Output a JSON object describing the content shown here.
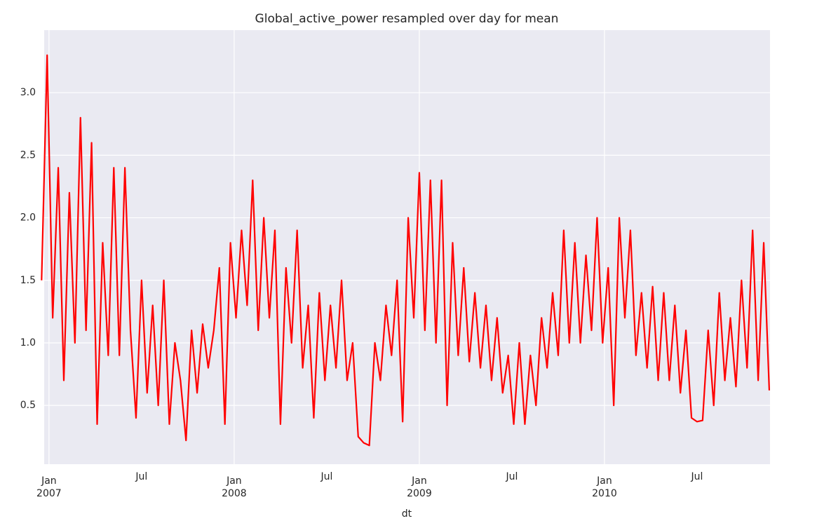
{
  "chart_data": {
    "type": "line",
    "title": "Global_active_power resampled over day for mean",
    "x_label": "dt",
    "x": [
      2006.96,
      2006.99,
      2007.02,
      2007.05,
      2007.08,
      2007.11,
      2007.14,
      2007.17,
      2007.2,
      2007.23,
      2007.26,
      2007.29,
      2007.32,
      2007.35,
      2007.38,
      2007.41,
      2007.44,
      2007.47,
      2007.5,
      2007.53,
      2007.56,
      2007.59,
      2007.62,
      2007.65,
      2007.68,
      2007.71,
      2007.74,
      2007.77,
      2007.8,
      2007.83,
      2007.86,
      2007.89,
      2007.92,
      2007.95,
      2007.98,
      2008.01,
      2008.04,
      2008.07,
      2008.1,
      2008.13,
      2008.16,
      2008.19,
      2008.22,
      2008.25,
      2008.28,
      2008.31,
      2008.34,
      2008.37,
      2008.4,
      2008.43,
      2008.46,
      2008.49,
      2008.52,
      2008.55,
      2008.58,
      2008.61,
      2008.64,
      2008.67,
      2008.7,
      2008.73,
      2008.76,
      2008.79,
      2008.82,
      2008.85,
      2008.88,
      2008.91,
      2008.94,
      2008.97,
      2009.0,
      2009.03,
      2009.06,
      2009.09,
      2009.12,
      2009.15,
      2009.18,
      2009.21,
      2009.24,
      2009.27,
      2009.3,
      2009.33,
      2009.36,
      2009.39,
      2009.42,
      2009.45,
      2009.48,
      2009.51,
      2009.54,
      2009.57,
      2009.6,
      2009.63,
      2009.66,
      2009.69,
      2009.72,
      2009.75,
      2009.78,
      2009.81,
      2009.84,
      2009.87,
      2009.9,
      2009.93,
      2009.96,
      2009.99,
      2010.02,
      2010.05,
      2010.08,
      2010.11,
      2010.14,
      2010.17,
      2010.2,
      2010.23,
      2010.26,
      2010.29,
      2010.32,
      2010.35,
      2010.38,
      2010.41,
      2010.44,
      2010.47,
      2010.5,
      2010.53,
      2010.56,
      2010.59,
      2010.62,
      2010.65,
      2010.68,
      2010.71,
      2010.74,
      2010.77,
      2010.8,
      2010.83,
      2010.86,
      2010.89
    ],
    "series": [
      {
        "color": "#ff0000",
        "values": [
          1.5,
          3.3,
          1.2,
          2.4,
          0.7,
          2.2,
          1.0,
          2.8,
          1.1,
          2.6,
          0.35,
          1.8,
          0.9,
          2.4,
          0.9,
          2.4,
          1.1,
          0.4,
          1.5,
          0.6,
          1.3,
          0.5,
          1.5,
          0.35,
          1.0,
          0.7,
          0.22,
          1.1,
          0.6,
          1.15,
          0.8,
          1.1,
          1.6,
          0.35,
          1.8,
          1.2,
          1.9,
          1.3,
          2.3,
          1.1,
          2.0,
          1.2,
          1.9,
          0.35,
          1.6,
          1.0,
          1.9,
          0.8,
          1.3,
          0.4,
          1.4,
          0.7,
          1.3,
          0.8,
          1.5,
          0.7,
          1.0,
          0.25,
          0.2,
          0.18,
          1.0,
          0.7,
          1.3,
          0.9,
          1.5,
          0.37,
          2.0,
          1.2,
          2.36,
          1.1,
          2.3,
          1.0,
          2.3,
          0.5,
          1.8,
          0.9,
          1.6,
          0.85,
          1.4,
          0.8,
          1.3,
          0.7,
          1.2,
          0.6,
          0.9,
          0.35,
          1.0,
          0.35,
          0.9,
          0.5,
          1.2,
          0.8,
          1.4,
          0.9,
          1.9,
          1.0,
          1.8,
          1.0,
          1.7,
          1.1,
          2.0,
          1.0,
          1.6,
          0.5,
          2.0,
          1.2,
          1.9,
          0.9,
          1.4,
          0.8,
          1.45,
          0.7,
          1.4,
          0.7,
          1.3,
          0.6,
          1.1,
          0.4,
          0.37,
          0.38,
          1.1,
          0.5,
          1.4,
          0.7,
          1.2,
          0.65,
          1.5,
          0.8,
          1.9,
          0.7,
          1.8,
          0.62
        ]
      }
    ],
    "xlim": [
      2006.974,
      2010.894
    ],
    "xticks": [
      {
        "value": 2007.0,
        "label": "Jan\n2007"
      },
      {
        "value": 2008.0,
        "label": "Jan\n2008"
      },
      {
        "value": 2009.0,
        "label": "Jan\n2009"
      },
      {
        "value": 2010.0,
        "label": "Jan\n2010"
      }
    ],
    "xticks_minor": [
      {
        "value": 2007.5,
        "label": "Jul"
      },
      {
        "value": 2008.5,
        "label": "Jul"
      },
      {
        "value": 2009.5,
        "label": "Jul"
      },
      {
        "value": 2010.5,
        "label": "Jul"
      }
    ],
    "ylim": [
      0.03,
      3.5
    ],
    "yticks": [
      0.5,
      {
        "value": 1.0,
        "label": "1.0"
      },
      1.5,
      {
        "value": 2.0,
        "label": "2.0"
      },
      2.5,
      {
        "value": 3.0,
        "label": "3.0"
      }
    ],
    "grid": true
  }
}
